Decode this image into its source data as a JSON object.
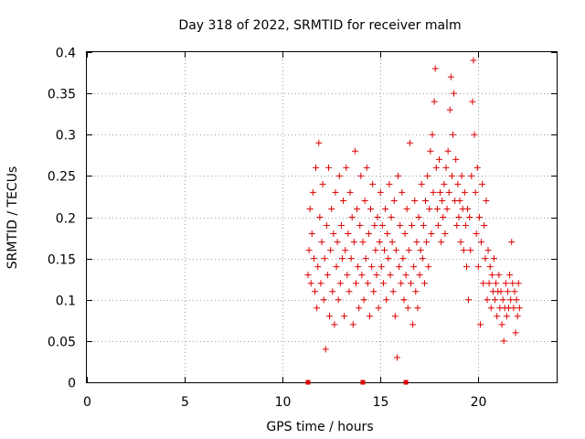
{
  "chart_data": {
    "type": "scatter",
    "title": "Day 318 of 2022, SRMTID for receiver malm",
    "xlabel": "GPS time / hours",
    "ylabel": "SRMTID / TECUs",
    "xlim": [
      0,
      24
    ],
    "ylim": [
      0,
      0.4
    ],
    "x_ticks": [
      0,
      5,
      10,
      15,
      20
    ],
    "x_tick_labels": [
      "0",
      "5",
      "10",
      "15",
      "20"
    ],
    "y_ticks": [
      0,
      0.05,
      0.1,
      0.15,
      0.2,
      0.25,
      0.3,
      0.35,
      0.4
    ],
    "y_tick_labels": [
      "0",
      "0.05",
      "0.1",
      "0.15",
      "0.2",
      "0.25",
      "0.3",
      "0.35",
      "0.4"
    ],
    "grid": true,
    "marker": "+",
    "color": "#dd0000",
    "series": [
      {
        "name": "SRMTID",
        "points": [
          [
            11.3,
            0.13
          ],
          [
            11.35,
            0.16
          ],
          [
            11.4,
            0.21
          ],
          [
            11.45,
            0.12
          ],
          [
            11.5,
            0.18
          ],
          [
            11.55,
            0.23
          ],
          [
            11.6,
            0.15
          ],
          [
            11.65,
            0.11
          ],
          [
            11.7,
            0.26
          ],
          [
            11.75,
            0.09
          ],
          [
            11.8,
            0.14
          ],
          [
            11.85,
            0.29
          ],
          [
            11.9,
            0.2
          ],
          [
            11.95,
            0.12
          ],
          [
            12.0,
            0.17
          ],
          [
            12.05,
            0.24
          ],
          [
            12.1,
            0.1
          ],
          [
            12.15,
            0.15
          ],
          [
            12.2,
            0.04
          ],
          [
            12.25,
            0.19
          ],
          [
            12.3,
            0.13
          ],
          [
            12.35,
            0.26
          ],
          [
            12.4,
            0.08
          ],
          [
            12.45,
            0.16
          ],
          [
            12.5,
            0.21
          ],
          [
            12.55,
            0.11
          ],
          [
            12.6,
            0.18
          ],
          [
            12.65,
            0.07
          ],
          [
            12.7,
            0.23
          ],
          [
            12.75,
            0.14
          ],
          [
            12.8,
            0.17
          ],
          [
            12.85,
            0.1
          ],
          [
            12.9,
            0.25
          ],
          [
            12.95,
            0.12
          ],
          [
            13.0,
            0.19
          ],
          [
            13.05,
            0.15
          ],
          [
            13.1,
            0.22
          ],
          [
            13.15,
            0.08
          ],
          [
            13.2,
            0.16
          ],
          [
            13.25,
            0.26
          ],
          [
            13.3,
            0.13
          ],
          [
            13.35,
            0.18
          ],
          [
            13.4,
            0.11
          ],
          [
            13.45,
            0.23
          ],
          [
            13.5,
            0.15
          ],
          [
            13.55,
            0.2
          ],
          [
            13.6,
            0.07
          ],
          [
            13.65,
            0.17
          ],
          [
            13.7,
            0.28
          ],
          [
            13.75,
            0.12
          ],
          [
            13.8,
            0.21
          ],
          [
            13.85,
            0.14
          ],
          [
            13.9,
            0.09
          ],
          [
            13.95,
            0.19
          ],
          [
            14.0,
            0.25
          ],
          [
            14.05,
            0.13
          ],
          [
            14.1,
            0.17
          ],
          [
            14.15,
            0.1
          ],
          [
            14.2,
            0.22
          ],
          [
            14.25,
            0.15
          ],
          [
            14.3,
            0.26
          ],
          [
            14.35,
            0.12
          ],
          [
            14.4,
            0.18
          ],
          [
            14.45,
            0.08
          ],
          [
            14.5,
            0.21
          ],
          [
            14.55,
            0.14
          ],
          [
            14.6,
            0.24
          ],
          [
            14.65,
            0.11
          ],
          [
            14.7,
            0.19
          ],
          [
            14.75,
            0.16
          ],
          [
            14.8,
            0.13
          ],
          [
            14.85,
            0.2
          ],
          [
            14.9,
            0.09
          ],
          [
            14.95,
            0.17
          ],
          [
            15.0,
            0.23
          ],
          [
            15.05,
            0.14
          ],
          [
            15.1,
            0.19
          ],
          [
            15.15,
            0.12
          ],
          [
            15.2,
            0.16
          ],
          [
            15.25,
            0.21
          ],
          [
            15.3,
            0.1
          ],
          [
            15.35,
            0.18
          ],
          [
            15.4,
            0.15
          ],
          [
            15.45,
            0.24
          ],
          [
            15.5,
            0.13
          ],
          [
            15.55,
            0.2
          ],
          [
            15.6,
            0.17
          ],
          [
            15.65,
            0.11
          ],
          [
            15.7,
            0.22
          ],
          [
            15.75,
            0.08
          ],
          [
            15.8,
            0.16
          ],
          [
            15.85,
            0.03
          ],
          [
            15.9,
            0.25
          ],
          [
            15.95,
            0.14
          ],
          [
            16.0,
            0.19
          ],
          [
            16.05,
            0.12
          ],
          [
            16.1,
            0.23
          ],
          [
            16.15,
            0.15
          ],
          [
            16.2,
            0.1
          ],
          [
            16.25,
            0.18
          ],
          [
            16.3,
            0.13
          ],
          [
            16.35,
            0.21
          ],
          [
            16.4,
            0.09
          ],
          [
            16.45,
            0.16
          ],
          [
            16.5,
            0.29
          ],
          [
            16.55,
            0.12
          ],
          [
            16.6,
            0.19
          ],
          [
            16.65,
            0.07
          ],
          [
            16.7,
            0.14
          ],
          [
            16.75,
            0.22
          ],
          [
            16.8,
            0.11
          ],
          [
            16.85,
            0.17
          ],
          [
            16.9,
            0.09
          ],
          [
            16.95,
            0.2
          ],
          [
            17.0,
            0.13
          ],
          [
            17.05,
            0.16
          ],
          [
            17.1,
            0.24
          ],
          [
            17.15,
            0.15
          ],
          [
            17.2,
            0.19
          ],
          [
            17.25,
            0.12
          ],
          [
            17.3,
            0.22
          ],
          [
            17.35,
            0.17
          ],
          [
            17.4,
            0.25
          ],
          [
            17.45,
            0.14
          ],
          [
            17.5,
            0.21
          ],
          [
            17.55,
            0.28
          ],
          [
            17.6,
            0.18
          ],
          [
            17.65,
            0.3
          ],
          [
            17.7,
            0.23
          ],
          [
            17.75,
            0.34
          ],
          [
            17.8,
            0.38
          ],
          [
            17.85,
            0.26
          ],
          [
            17.9,
            0.21
          ],
          [
            17.95,
            0.19
          ],
          [
            18.0,
            0.27
          ],
          [
            18.05,
            0.23
          ],
          [
            18.1,
            0.17
          ],
          [
            18.15,
            0.22
          ],
          [
            18.2,
            0.2
          ],
          [
            18.25,
            0.24
          ],
          [
            18.3,
            0.18
          ],
          [
            18.35,
            0.26
          ],
          [
            18.4,
            0.21
          ],
          [
            18.45,
            0.28
          ],
          [
            18.5,
            0.23
          ],
          [
            18.55,
            0.33
          ],
          [
            18.6,
            0.37
          ],
          [
            18.65,
            0.25
          ],
          [
            18.7,
            0.3
          ],
          [
            18.75,
            0.35
          ],
          [
            18.8,
            0.22
          ],
          [
            18.85,
            0.27
          ],
          [
            18.9,
            0.19
          ],
          [
            18.95,
            0.24
          ],
          [
            19.0,
            0.2
          ],
          [
            19.05,
            0.22
          ],
          [
            19.1,
            0.17
          ],
          [
            19.15,
            0.25
          ],
          [
            19.2,
            0.21
          ],
          [
            19.25,
            0.16
          ],
          [
            19.3,
            0.23
          ],
          [
            19.35,
            0.19
          ],
          [
            19.4,
            0.14
          ],
          [
            19.45,
            0.21
          ],
          [
            19.5,
            0.1
          ],
          [
            19.55,
            0.2
          ],
          [
            19.6,
            0.16
          ],
          [
            19.65,
            0.25
          ],
          [
            19.7,
            0.34
          ],
          [
            19.75,
            0.39
          ],
          [
            19.8,
            0.3
          ],
          [
            19.85,
            0.23
          ],
          [
            19.9,
            0.18
          ],
          [
            19.95,
            0.26
          ],
          [
            20.0,
            0.14
          ],
          [
            20.05,
            0.2
          ],
          [
            20.1,
            0.07
          ],
          [
            20.15,
            0.17
          ],
          [
            20.2,
            0.24
          ],
          [
            20.25,
            0.12
          ],
          [
            20.3,
            0.19
          ],
          [
            20.35,
            0.15
          ],
          [
            20.4,
            0.22
          ],
          [
            20.45,
            0.1
          ],
          [
            20.5,
            0.16
          ],
          [
            20.55,
            0.12
          ],
          [
            20.6,
            0.14
          ],
          [
            20.65,
            0.09
          ],
          [
            20.7,
            0.13
          ],
          [
            20.75,
            0.11
          ],
          [
            20.8,
            0.15
          ],
          [
            20.85,
            0.1
          ],
          [
            20.9,
            0.12
          ],
          [
            20.95,
            0.08
          ],
          [
            21.0,
            0.11
          ],
          [
            21.05,
            0.13
          ],
          [
            21.1,
            0.09
          ],
          [
            21.15,
            0.11
          ],
          [
            21.2,
            0.07
          ],
          [
            21.25,
            0.1
          ],
          [
            21.3,
            0.05
          ],
          [
            21.35,
            0.09
          ],
          [
            21.4,
            0.12
          ],
          [
            21.45,
            0.08
          ],
          [
            21.5,
            0.11
          ],
          [
            21.55,
            0.09
          ],
          [
            21.6,
            0.13
          ],
          [
            21.65,
            0.1
          ],
          [
            21.7,
            0.17
          ],
          [
            21.75,
            0.12
          ],
          [
            21.8,
            0.09
          ],
          [
            21.85,
            0.11
          ],
          [
            21.9,
            0.06
          ],
          [
            21.95,
            0.1
          ],
          [
            22.0,
            0.08
          ],
          [
            22.05,
            0.12
          ],
          [
            22.1,
            0.09
          ]
        ]
      }
    ],
    "axis_markers_x": [
      11.3,
      14.1,
      16.3
    ]
  }
}
